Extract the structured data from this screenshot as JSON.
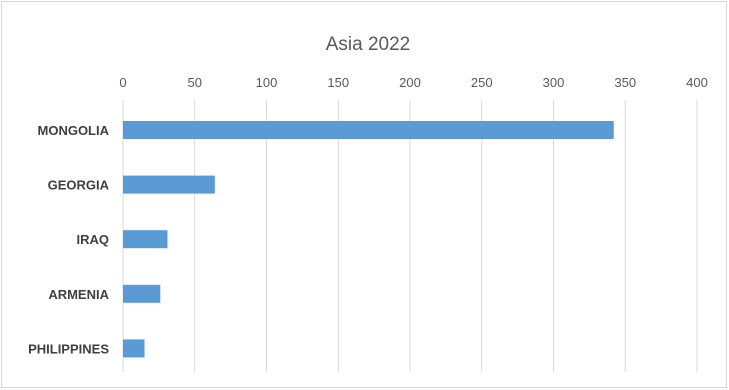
{
  "chart_data": {
    "type": "bar",
    "orientation": "horizontal",
    "title": "Asia 2022",
    "categories": [
      "MONGOLIA",
      "GEORGIA",
      "IRAQ",
      "ARMENIA",
      "PHILIPPINES"
    ],
    "values": [
      342,
      64,
      31,
      26,
      15
    ],
    "xlim": [
      0,
      400
    ],
    "xticks": [
      0,
      50,
      100,
      150,
      200,
      250,
      300,
      350,
      400
    ],
    "axis_position": "top",
    "grid": true,
    "bar_color": "#5b9bd5"
  }
}
